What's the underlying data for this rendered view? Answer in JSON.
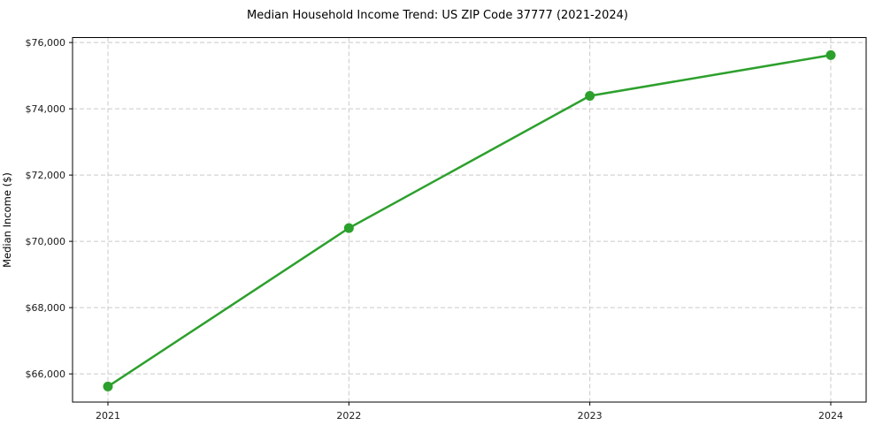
{
  "chart_data": {
    "type": "line",
    "title": "Median Household Income Trend: US ZIP Code 37777 (2021-2024)",
    "xlabel": "",
    "ylabel": "Median Income ($)",
    "x": [
      2021,
      2022,
      2023,
      2024
    ],
    "xtick_labels": [
      "2021",
      "2022",
      "2023",
      "2024"
    ],
    "values": [
      65620,
      70400,
      74390,
      75620
    ],
    "yticks": [
      66000,
      68000,
      70000,
      72000,
      74000,
      76000
    ],
    "ytick_labels": [
      "$66,000",
      "$68,000",
      "$70,000",
      "$72,000",
      "$74,000",
      "$76,000"
    ],
    "ylim": [
      65150,
      76150
    ],
    "grid": true,
    "grid_style": "dashed",
    "legend": false,
    "line_color": "#2ca02c",
    "marker": "circle"
  },
  "colors": {
    "background": "#ffffff",
    "grid": "#c9c9c9",
    "spine": "#000000",
    "text": "#1a1a1a",
    "accent": "#2ca02c"
  }
}
